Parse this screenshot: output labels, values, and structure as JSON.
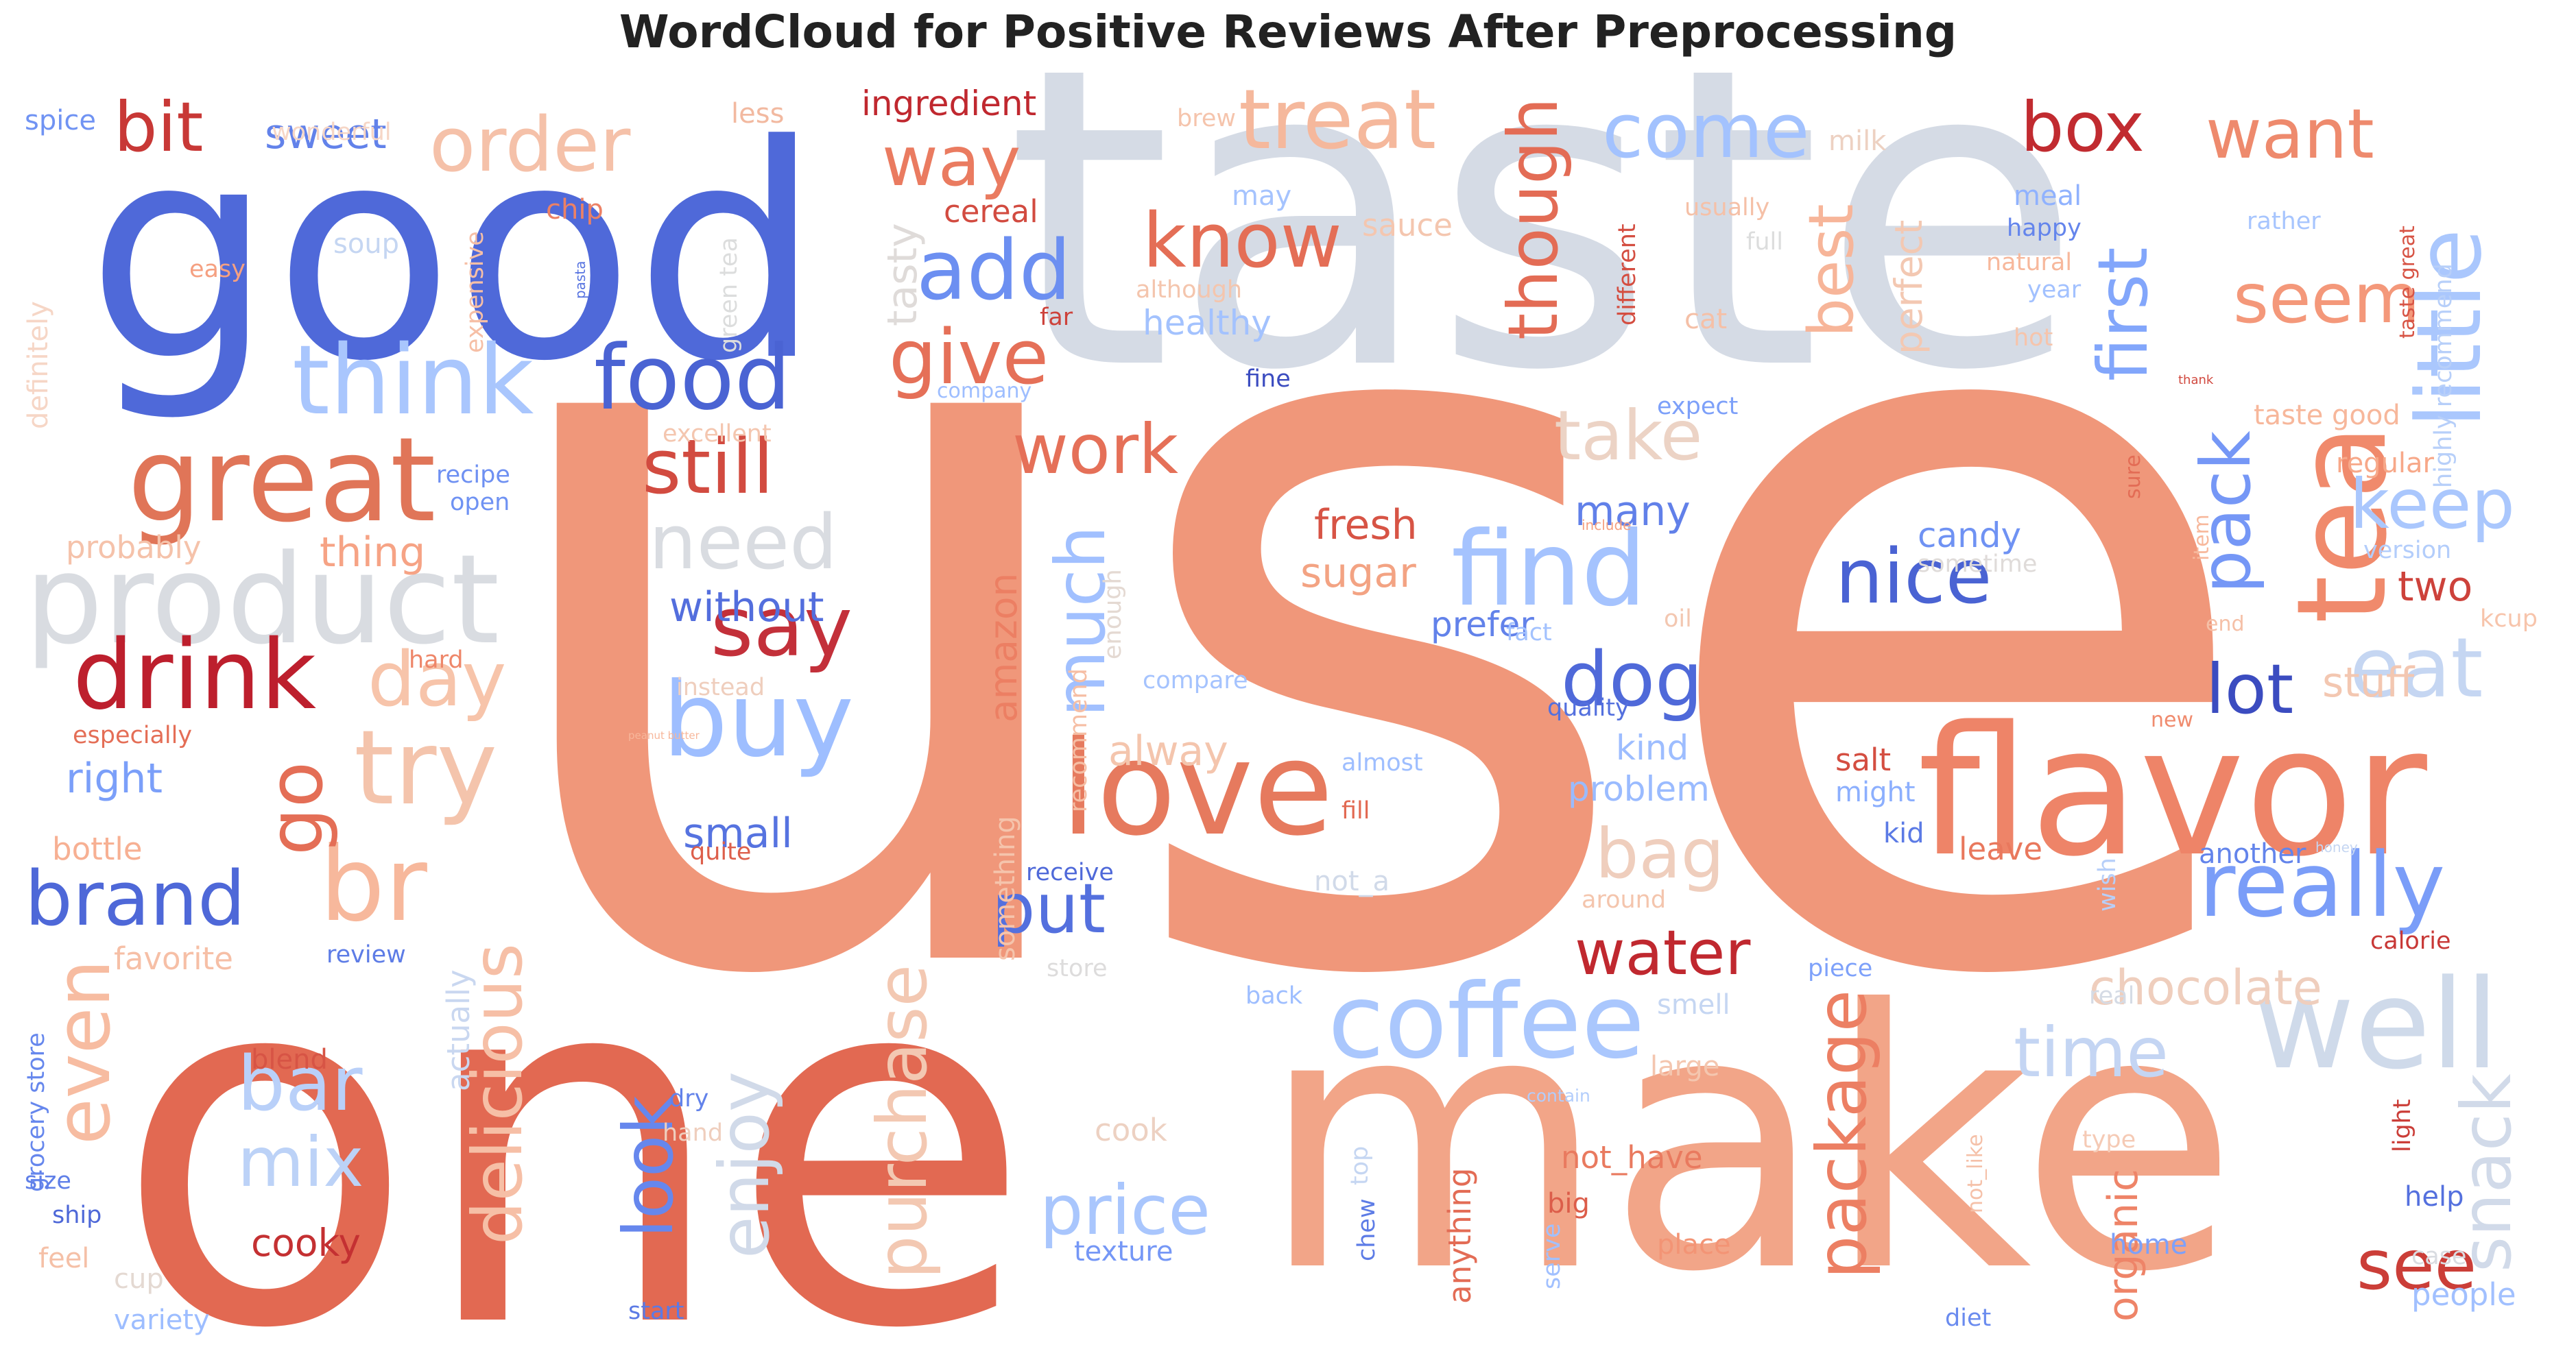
{
  "title": "WordCloud for Positive Reviews After Preprocessing",
  "palette": "coolwarm",
  "words": [
    {
      "text": "use",
      "color": "#f0977a"
    },
    {
      "text": "taste",
      "color": "#d5dbe5"
    },
    {
      "text": "one",
      "color": "#e26952"
    },
    {
      "text": "good",
      "color": "#4f69d9"
    },
    {
      "text": "make",
      "color": "#f2a588"
    },
    {
      "text": "flavor",
      "color": "#ee8468"
    },
    {
      "text": "product",
      "color": "#d9dce1"
    },
    {
      "text": "love",
      "color": "#e67a5e"
    },
    {
      "text": "great",
      "color": "#e07558"
    },
    {
      "text": "drink",
      "color": "#bd1f2d"
    },
    {
      "text": "coffee",
      "color": "#aac7fd"
    },
    {
      "text": "buy",
      "color": "#9ebeff"
    },
    {
      "text": "try",
      "color": "#f4c4ac"
    },
    {
      "text": "tea",
      "color": "#f08a6c"
    },
    {
      "text": "well",
      "color": "#cfdaea"
    },
    {
      "text": "find",
      "color": "#a5c3fe"
    },
    {
      "text": "think",
      "color": "#a9c6fd"
    },
    {
      "text": "food",
      "color": "#4a63d3"
    },
    {
      "text": "really",
      "color": "#7a9df8"
    },
    {
      "text": "order",
      "color": "#f5c1a9"
    },
    {
      "text": "little",
      "color": "#aac7fd"
    },
    {
      "text": "treat",
      "color": "#f5b89c"
    },
    {
      "text": "come",
      "color": "#a3c2fe"
    },
    {
      "text": "box",
      "color": "#c12b30"
    },
    {
      "text": "want",
      "color": "#ee8a6d"
    },
    {
      "text": "give",
      "color": "#e57058"
    },
    {
      "text": "add",
      "color": "#6c8ff1"
    },
    {
      "text": "know",
      "color": "#e46e56"
    },
    {
      "text": "way",
      "color": "#ea7b60"
    },
    {
      "text": "bit",
      "color": "#c83836"
    },
    {
      "text": "still",
      "color": "#d24b40"
    },
    {
      "text": "say",
      "color": "#c3303a"
    },
    {
      "text": "need",
      "color": "#d9dce1"
    },
    {
      "text": "nice",
      "color": "#4a63d3"
    },
    {
      "text": "dog",
      "color": "#4f69d9"
    },
    {
      "text": "lot",
      "color": "#3b4cc0"
    },
    {
      "text": "eat",
      "color": "#c5d6f2"
    },
    {
      "text": "keep",
      "color": "#aac7fd"
    },
    {
      "text": "seem",
      "color": "#f4987a"
    },
    {
      "text": "take",
      "color": "#ecd3c5"
    },
    {
      "text": "work",
      "color": "#e57058"
    },
    {
      "text": "much",
      "color": "#a1c0ff"
    },
    {
      "text": "though",
      "color": "#e36c55"
    },
    {
      "text": "best",
      "color": "#f7b599"
    },
    {
      "text": "first",
      "color": "#82a6fb"
    },
    {
      "text": "pack",
      "color": "#7597f6"
    },
    {
      "text": "day",
      "color": "#f7c4aa"
    },
    {
      "text": "br",
      "color": "#f7b89c"
    },
    {
      "text": "brand",
      "color": "#4e68d8"
    },
    {
      "text": "go",
      "color": "#e46e56"
    },
    {
      "text": "even",
      "color": "#f7bca1"
    },
    {
      "text": "bar",
      "color": "#b9d0f9"
    },
    {
      "text": "mix",
      "color": "#bcd2f7"
    },
    {
      "text": "delicious",
      "color": "#f6bfa6"
    },
    {
      "text": "look",
      "color": "#6687ed"
    },
    {
      "text": "enjoy",
      "color": "#d1dae9"
    },
    {
      "text": "purchase",
      "color": "#f3c8b2"
    },
    {
      "text": "price",
      "color": "#a9c6fd"
    },
    {
      "text": "put",
      "color": "#5470de"
    },
    {
      "text": "water",
      "color": "#c0282f"
    },
    {
      "text": "bag",
      "color": "#efcebd"
    },
    {
      "text": "time",
      "color": "#c4d5f3"
    },
    {
      "text": "package",
      "color": "#ec7f63"
    },
    {
      "text": "see",
      "color": "#cb3e38"
    },
    {
      "text": "snack",
      "color": "#d1dae9"
    },
    {
      "text": "chocolate",
      "color": "#efcebd"
    },
    {
      "text": "stuff",
      "color": "#f3c7b1"
    },
    {
      "text": "fresh",
      "color": "#d75445"
    },
    {
      "text": "sugar",
      "color": "#f3a383"
    },
    {
      "text": "many",
      "color": "#6180e9"
    },
    {
      "text": "candy",
      "color": "#6f92f3"
    },
    {
      "text": "sweet",
      "color": "#6282ea"
    },
    {
      "text": "thing",
      "color": "#f6a385"
    },
    {
      "text": "without",
      "color": "#536edd"
    },
    {
      "text": "small",
      "color": "#5673e0"
    },
    {
      "text": "alway",
      "color": "#f4c5ad"
    },
    {
      "text": "amazon",
      "color": "#ec7f63"
    },
    {
      "text": "right",
      "color": "#7b9ff9"
    },
    {
      "text": "two",
      "color": "#cd423b"
    },
    {
      "text": "organic",
      "color": "#ee8468"
    },
    {
      "text": "cooky",
      "color": "#c43032"
    },
    {
      "text": "prefer",
      "color": "#6282ea"
    },
    {
      "text": "kind",
      "color": "#9dbdff"
    },
    {
      "text": "problem",
      "color": "#9abbff"
    },
    {
      "text": "salt",
      "color": "#d44e41"
    },
    {
      "text": "might",
      "color": "#8caffe"
    },
    {
      "text": "kid",
      "color": "#5b7ae5"
    },
    {
      "text": "leave",
      "color": "#e9785d"
    },
    {
      "text": "another",
      "color": "#6384eb"
    },
    {
      "text": "ingredient",
      "color": "#c0282f"
    },
    {
      "text": "cereal",
      "color": "#d24b40"
    },
    {
      "text": "tasty",
      "color": "#dfdbd9"
    },
    {
      "text": "healthy",
      "color": "#a3c2fe"
    },
    {
      "text": "perfect",
      "color": "#f3c8b2"
    },
    {
      "text": "spice",
      "color": "#7093f3"
    },
    {
      "text": "wonderful",
      "color": "#f6d6c6"
    },
    {
      "text": "soup",
      "color": "#c5d6f2"
    },
    {
      "text": "chip",
      "color": "#ec8165"
    },
    {
      "text": "less",
      "color": "#f2b9a0"
    },
    {
      "text": "brew",
      "color": "#f5c4ac"
    },
    {
      "text": "milk",
      "color": "#edd1c2"
    },
    {
      "text": "may",
      "color": "#a5c3fe"
    },
    {
      "text": "sauce",
      "color": "#f4c6af"
    },
    {
      "text": "meal",
      "color": "#90b2fe"
    },
    {
      "text": "happy",
      "color": "#6485ec"
    },
    {
      "text": "natural",
      "color": "#f7b89c"
    },
    {
      "text": "usually",
      "color": "#f5c0a7"
    },
    {
      "text": "full",
      "color": "#dcdddd"
    },
    {
      "text": "year",
      "color": "#a2c1ff"
    },
    {
      "text": "hot",
      "color": "#f6c4ab"
    },
    {
      "text": "cat",
      "color": "#f5c0a7"
    },
    {
      "text": "rather",
      "color": "#a7c5fe"
    },
    {
      "text": "taste great",
      "color": "#d75445"
    },
    {
      "text": "highly recommend",
      "color": "#b7cff9"
    },
    {
      "text": "taste good",
      "color": "#f7b79b"
    },
    {
      "text": "regular",
      "color": "#f7a889"
    },
    {
      "text": "version",
      "color": "#b3cdfb"
    },
    {
      "text": "kcup",
      "color": "#f7c4ab"
    },
    {
      "text": "end",
      "color": "#f5c0a7"
    },
    {
      "text": "new",
      "color": "#f08b6e"
    },
    {
      "text": "calorie",
      "color": "#c83836"
    },
    {
      "text": "light",
      "color": "#cb3e38"
    },
    {
      "text": "help",
      "color": "#5470de"
    },
    {
      "text": "type",
      "color": "#f5cab5"
    },
    {
      "text": "home",
      "color": "#7da0f9"
    },
    {
      "text": "case",
      "color": "#d9dce1"
    },
    {
      "text": "people",
      "color": "#a1c0ff"
    },
    {
      "text": "diet",
      "color": "#6a8bef"
    },
    {
      "text": "place",
      "color": "#f39475"
    },
    {
      "text": "big",
      "color": "#dc5d4a"
    },
    {
      "text": "not_have",
      "color": "#e97a5f"
    },
    {
      "text": "not_like",
      "color": "#f5c1a9"
    },
    {
      "text": "contain",
      "color": "#b3cdfb"
    },
    {
      "text": "large",
      "color": "#f4c6af"
    },
    {
      "text": "smell",
      "color": "#c5d6f2"
    },
    {
      "text": "piece",
      "color": "#7ea1fa"
    },
    {
      "text": "real",
      "color": "#d5dbe5"
    },
    {
      "text": "wish",
      "color": "#b7cff9"
    },
    {
      "text": "honey",
      "color": "#c5d6f2"
    },
    {
      "text": "serve",
      "color": "#a1c0ff"
    },
    {
      "text": "anything",
      "color": "#e36c55"
    },
    {
      "text": "chew",
      "color": "#5d7ce6"
    },
    {
      "text": "top",
      "color": "#c5d6f2"
    },
    {
      "text": "texture",
      "color": "#7597f6"
    },
    {
      "text": "start",
      "color": "#5b7ae5"
    },
    {
      "text": "dry",
      "color": "#6282ea"
    },
    {
      "text": "hand",
      "color": "#efcebd"
    },
    {
      "text": "cook",
      "color": "#edd1c2"
    },
    {
      "text": "back",
      "color": "#9ebeff"
    },
    {
      "text": "store",
      "color": "#dddcdc"
    },
    {
      "text": "receive",
      "color": "#4f69d9"
    },
    {
      "text": "not_a",
      "color": "#d1dae9"
    },
    {
      "text": "around",
      "color": "#f4c5ad"
    },
    {
      "text": "fill",
      "color": "#e26952"
    },
    {
      "text": "almost",
      "color": "#9ebeff"
    },
    {
      "text": "quality",
      "color": "#5470de"
    },
    {
      "text": "fact",
      "color": "#a3c2fe"
    },
    {
      "text": "compare",
      "color": "#a5c3fe"
    },
    {
      "text": "something",
      "color": "#f5c4ac"
    },
    {
      "text": "recommend",
      "color": "#f6bea4"
    },
    {
      "text": "instead",
      "color": "#efcebd"
    },
    {
      "text": "enough",
      "color": "#e4d9d2"
    },
    {
      "text": "sometime",
      "color": "#dfdbd9"
    },
    {
      "text": "oil",
      "color": "#f3c7b1"
    },
    {
      "text": "include",
      "color": "#f5a081"
    },
    {
      "text": "item",
      "color": "#f7b89c"
    },
    {
      "text": "sure",
      "color": "#e36c55"
    },
    {
      "text": "thank",
      "color": "#d1493f"
    },
    {
      "text": "expect",
      "color": "#7da0f9"
    },
    {
      "text": "fine",
      "color": "#3b4cc0"
    },
    {
      "text": "company",
      "color": "#9ebeff"
    },
    {
      "text": "far",
      "color": "#cd423b"
    },
    {
      "text": "different",
      "color": "#d44e41"
    },
    {
      "text": "although",
      "color": "#f4c5ad"
    },
    {
      "text": "green tea",
      "color": "#dcdddd"
    },
    {
      "text": "pasta",
      "color": "#5673e0"
    },
    {
      "text": "easy",
      "color": "#f5a081"
    },
    {
      "text": "expensive",
      "color": "#f6bfa6"
    },
    {
      "text": "excellent",
      "color": "#f4c6af"
    },
    {
      "text": "recipe",
      "color": "#6e90f2"
    },
    {
      "text": "open",
      "color": "#6f92f3"
    },
    {
      "text": "probably",
      "color": "#f5c2aa"
    },
    {
      "text": "hard",
      "color": "#ee8669"
    },
    {
      "text": "especially",
      "color": "#e46e56"
    },
    {
      "text": "peanut butter",
      "color": "#f7b79b"
    },
    {
      "text": "bottle",
      "color": "#f7b093"
    },
    {
      "text": "favorite",
      "color": "#f6bfa6"
    },
    {
      "text": "review",
      "color": "#5d7ce6"
    },
    {
      "text": "actually",
      "color": "#c9d7f0"
    },
    {
      "text": "quite",
      "color": "#dd5f4b"
    },
    {
      "text": "blend",
      "color": "#d75445"
    },
    {
      "text": "grocery store",
      "color": "#6687ed"
    },
    {
      "text": "size",
      "color": "#5f7fe8"
    },
    {
      "text": "ship",
      "color": "#4e68d8"
    },
    {
      "text": "feel",
      "color": "#f5c0a7"
    },
    {
      "text": "cup",
      "color": "#e4d9d2"
    },
    {
      "text": "variety",
      "color": "#9dbdff"
    },
    {
      "text": "definitely",
      "color": "#f6d6c6"
    }
  ]
}
